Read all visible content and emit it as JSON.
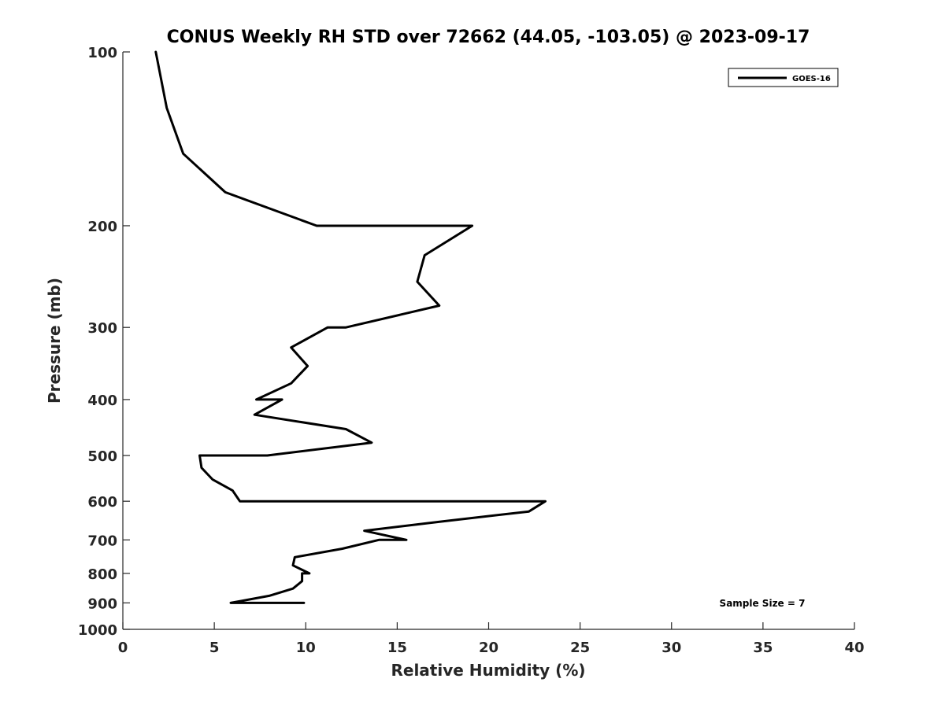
{
  "chart_data": {
    "type": "line",
    "title": "CONUS Weekly RH STD over 72662 (44.05, -103.05) @ 2023-09-17",
    "xlabel": "Relative Humidity (%)",
    "ylabel": "Pressure (mb)",
    "xlim": [
      0,
      40
    ],
    "ylim": [
      100,
      1000
    ],
    "yscale": "log",
    "y_reversed": true,
    "xticks": [
      0,
      5,
      10,
      15,
      20,
      25,
      30,
      35,
      40
    ],
    "yticks": [
      100,
      200,
      300,
      400,
      500,
      600,
      700,
      800,
      900,
      1000
    ],
    "grid": false,
    "legend_position": "top-right",
    "annotation": "Sample Size = 7",
    "series": [
      {
        "name": "GOES-16",
        "color": "#000000",
        "points": [
          [
            1.8,
            100
          ],
          [
            2.4,
            125
          ],
          [
            3.3,
            150
          ],
          [
            5.6,
            175
          ],
          [
            10.6,
            200
          ],
          [
            19.1,
            200
          ],
          [
            16.5,
            225
          ],
          [
            16.1,
            250
          ],
          [
            17.3,
            275
          ],
          [
            12.2,
            300
          ],
          [
            11.2,
            300
          ],
          [
            9.2,
            325
          ],
          [
            10.1,
            350
          ],
          [
            9.2,
            375
          ],
          [
            7.3,
            400
          ],
          [
            8.7,
            400
          ],
          [
            7.2,
            425
          ],
          [
            12.2,
            450
          ],
          [
            13.6,
            475
          ],
          [
            7.9,
            500
          ],
          [
            4.2,
            500
          ],
          [
            4.3,
            525
          ],
          [
            4.9,
            550
          ],
          [
            6.0,
            575
          ],
          [
            6.4,
            600
          ],
          [
            23.1,
            600
          ],
          [
            22.2,
            625
          ],
          [
            17.5,
            650
          ],
          [
            13.2,
            675
          ],
          [
            15.5,
            700
          ],
          [
            14.0,
            700
          ],
          [
            12.0,
            725
          ],
          [
            9.4,
            750
          ],
          [
            9.3,
            775
          ],
          [
            10.2,
            800
          ],
          [
            9.8,
            800
          ],
          [
            9.8,
            825
          ],
          [
            9.3,
            850
          ],
          [
            8.0,
            875
          ],
          [
            5.9,
            900
          ],
          [
            9.9,
            900
          ]
        ]
      }
    ]
  }
}
